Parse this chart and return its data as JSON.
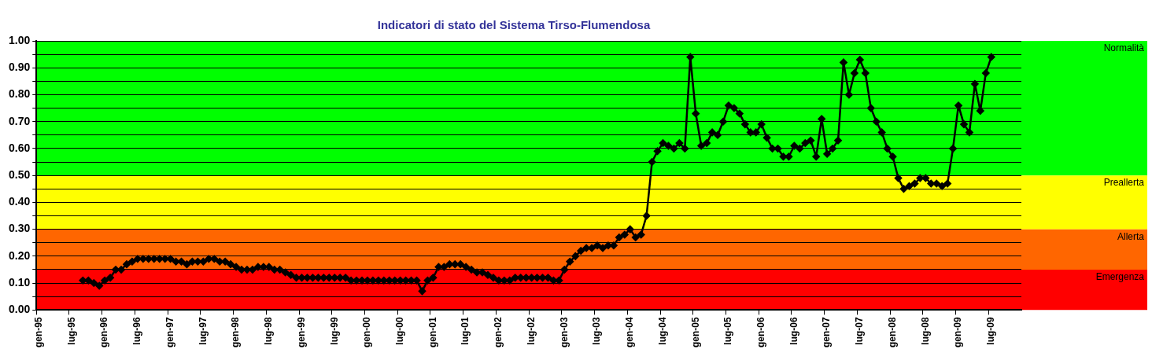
{
  "chart_data": {
    "type": "line",
    "title": "Indicatori di stato del Sistema Tirso-Flumendosa",
    "categories": [
      "gen-95",
      null,
      null,
      null,
      null,
      null,
      "lug-95",
      null,
      null,
      null,
      null,
      null,
      "gen-96",
      null,
      null,
      null,
      null,
      null,
      "lug-96",
      null,
      null,
      null,
      null,
      null,
      "gen-97",
      null,
      null,
      null,
      null,
      null,
      "lug-97",
      null,
      null,
      null,
      null,
      null,
      "gen-98",
      null,
      null,
      null,
      null,
      null,
      "lug-98",
      null,
      null,
      null,
      null,
      null,
      "gen-99",
      null,
      null,
      null,
      null,
      null,
      "lug-99",
      null,
      null,
      null,
      null,
      null,
      "gen-00",
      null,
      null,
      null,
      null,
      null,
      "lug-00",
      null,
      null,
      null,
      null,
      null,
      "gen-01",
      null,
      null,
      null,
      null,
      null,
      "lug-01",
      null,
      null,
      null,
      null,
      null,
      "gen-02",
      null,
      null,
      null,
      null,
      null,
      "lug-02",
      null,
      null,
      null,
      null,
      null,
      "gen-03",
      null,
      null,
      null,
      null,
      null,
      "lug-03",
      null,
      null,
      null,
      null,
      null,
      "gen-04",
      null,
      null,
      null,
      null,
      null,
      "lug-04",
      null,
      null,
      null,
      null,
      null,
      "gen-05",
      null,
      null,
      null,
      null,
      null,
      "lug-05",
      null,
      null,
      null,
      null,
      null,
      "gen-06",
      null,
      null,
      null,
      null,
      null,
      "lug-06",
      null,
      null,
      null,
      null,
      null,
      "gen-07",
      null,
      null,
      null,
      null,
      null,
      "lug-07",
      null,
      null,
      null,
      null,
      null,
      "gen-08",
      null,
      null,
      null,
      null,
      null,
      "lug-08",
      null,
      null,
      null,
      null,
      null,
      "gen-09",
      null,
      null,
      null,
      null,
      null,
      "lug-09",
      null,
      null,
      null,
      null,
      null
    ],
    "values": [
      null,
      null,
      null,
      null,
      null,
      null,
      null,
      null,
      0.11,
      0.11,
      0.1,
      0.09,
      0.11,
      0.12,
      0.15,
      0.15,
      0.17,
      0.18,
      0.19,
      0.19,
      0.19,
      0.19,
      0.19,
      0.19,
      0.19,
      0.18,
      0.18,
      0.17,
      0.18,
      0.18,
      0.18,
      0.19,
      0.19,
      0.18,
      0.18,
      0.17,
      0.16,
      0.15,
      0.15,
      0.15,
      0.16,
      0.16,
      0.16,
      0.15,
      0.15,
      0.14,
      0.13,
      0.12,
      0.12,
      0.12,
      0.12,
      0.12,
      0.12,
      0.12,
      0.12,
      0.12,
      0.12,
      0.11,
      0.11,
      0.11,
      0.11,
      0.11,
      0.11,
      0.11,
      0.11,
      0.11,
      0.11,
      0.11,
      0.11,
      0.11,
      0.07,
      0.11,
      0.12,
      0.16,
      0.16,
      0.17,
      0.17,
      0.17,
      0.16,
      0.15,
      0.14,
      0.14,
      0.13,
      0.12,
      0.11,
      0.11,
      0.11,
      0.12,
      0.12,
      0.12,
      0.12,
      0.12,
      0.12,
      0.12,
      0.11,
      0.11,
      0.15,
      0.18,
      0.2,
      0.22,
      0.23,
      0.23,
      0.24,
      0.23,
      0.24,
      0.24,
      0.27,
      0.28,
      0.3,
      0.27,
      0.28,
      0.35,
      0.55,
      0.59,
      0.62,
      0.61,
      0.6,
      0.62,
      0.6,
      0.94,
      0.73,
      0.61,
      0.62,
      0.66,
      0.65,
      0.7,
      0.76,
      0.75,
      0.73,
      0.69,
      0.66,
      0.66,
      0.69,
      0.64,
      0.6,
      0.6,
      0.57,
      0.57,
      0.61,
      0.6,
      0.62,
      0.63,
      0.57,
      0.71,
      0.58,
      0.6,
      0.63,
      0.92,
      0.8,
      0.88,
      0.93,
      0.88,
      0.75,
      0.7,
      0.66,
      0.6,
      0.57,
      0.49,
      0.45,
      0.46,
      0.47,
      0.49,
      0.49,
      0.47,
      0.47,
      0.46,
      0.47,
      0.6,
      0.76,
      0.69,
      0.66,
      0.84,
      0.74,
      0.88,
      0.94,
      null,
      null,
      null,
      null,
      null
    ],
    "color": "#000000",
    "marker": "diamond",
    "grid": "y",
    "ylim": [
      0,
      1
    ],
    "yticks": [
      {
        "value": 0,
        "label": "0.00"
      },
      {
        "value": 0.05,
        "label": null
      },
      {
        "value": 0.1,
        "label": "0.10"
      },
      {
        "value": 0.15,
        "label": null
      },
      {
        "value": 0.2,
        "label": "0.20"
      },
      {
        "value": 0.25,
        "label": null
      },
      {
        "value": 0.3,
        "label": "0.30"
      },
      {
        "value": 0.35,
        "label": null
      },
      {
        "value": 0.4,
        "label": "0.40"
      },
      {
        "value": 0.45,
        "label": null
      },
      {
        "value": 0.5,
        "label": "0.50"
      },
      {
        "value": 0.55,
        "label": null
      },
      {
        "value": 0.6,
        "label": "0.60"
      },
      {
        "value": 0.65,
        "label": null
      },
      {
        "value": 0.7,
        "label": "0.70"
      },
      {
        "value": 0.75,
        "label": null
      },
      {
        "value": 0.8,
        "label": "0.80"
      },
      {
        "value": 0.85,
        "label": null
      },
      {
        "value": 0.9,
        "label": "0.90"
      },
      {
        "value": 0.95,
        "label": null
      },
      {
        "value": 1,
        "label": "1.00"
      }
    ],
    "bands": [
      {
        "axis": "y",
        "from": 0.5,
        "to": 1,
        "label": "Normalità",
        "color": "#00ff00"
      },
      {
        "axis": "y",
        "from": 0.3,
        "to": 0.5,
        "label": "Preallerta",
        "color": "#ffff00"
      },
      {
        "axis": "y",
        "from": 0.15,
        "to": 0.3,
        "label": "Allerta",
        "color": "#ff6600"
      },
      {
        "axis": "y",
        "from": 0,
        "to": 0.15,
        "label": "Emergenza",
        "color": "#ff0000"
      }
    ]
  }
}
